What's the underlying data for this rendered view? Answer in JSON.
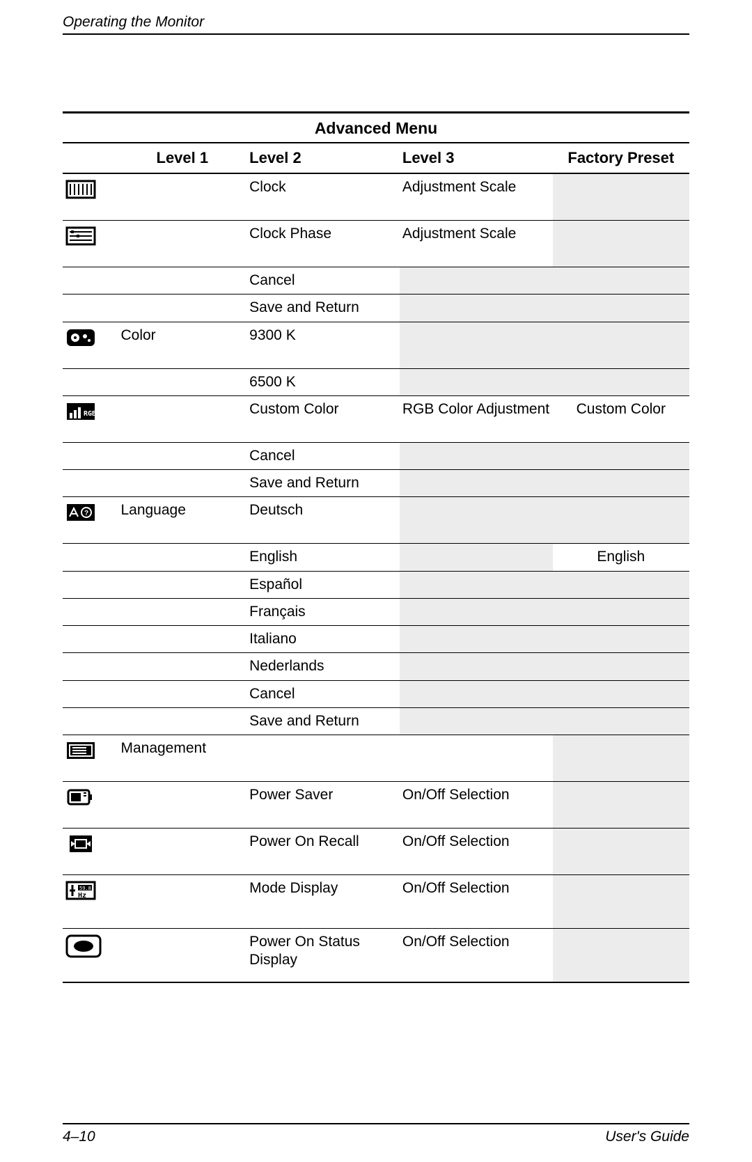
{
  "header": {
    "section": "Operating the Monitor"
  },
  "footer": {
    "page": "4–10",
    "doc": "User's Guide"
  },
  "table": {
    "title": "Advanced Menu",
    "columns": {
      "icon": "",
      "level1": "Level 1",
      "level2": "Level 2",
      "level3": "Level 3",
      "preset": "Factory Preset"
    },
    "shade_hex": "#ececec",
    "border_hex": "#000000",
    "font_size_pt": 16,
    "rows": [
      {
        "icon": "clock",
        "l1": "",
        "l2": "Clock",
        "l3": "Adjustment Scale",
        "fp": "",
        "shade_l3": false,
        "shade_fp": true,
        "tall": true
      },
      {
        "icon": "clockphase",
        "l1": "",
        "l2": "Clock Phase",
        "l3": "Adjustment Scale",
        "fp": "",
        "shade_l3": false,
        "shade_fp": true,
        "tall": true
      },
      {
        "icon": "",
        "l1": "",
        "l2": "Cancel",
        "l3": "",
        "fp": "",
        "shade_l3": true,
        "shade_fp": true
      },
      {
        "icon": "",
        "l1": "",
        "l2": "Save and Return",
        "l3": "",
        "fp": "",
        "shade_l3": true,
        "shade_fp": true
      },
      {
        "icon": "color",
        "l1": "Color",
        "l2": "9300 K",
        "l3": "",
        "fp": "",
        "shade_l3": true,
        "shade_fp": true,
        "tall": true
      },
      {
        "icon": "",
        "l1": "",
        "l2": "6500 K",
        "l3": "",
        "fp": "",
        "shade_l3": true,
        "shade_fp": true
      },
      {
        "icon": "rgb",
        "l1": "",
        "l2": "Custom Color",
        "l3": "RGB Color Adjustment",
        "fp": "Custom Color",
        "shade_l3": false,
        "shade_fp": false,
        "tall": true
      },
      {
        "icon": "",
        "l1": "",
        "l2": "Cancel",
        "l3": "",
        "fp": "",
        "shade_l3": true,
        "shade_fp": true
      },
      {
        "icon": "",
        "l1": "",
        "l2": "Save and Return",
        "l3": "",
        "fp": "",
        "shade_l3": true,
        "shade_fp": true
      },
      {
        "icon": "language",
        "l1": "Language",
        "l2": "Deutsch",
        "l3": "",
        "fp": "",
        "shade_l3": true,
        "shade_fp": true,
        "tall": true
      },
      {
        "icon": "",
        "l1": "",
        "l2": "English",
        "l3": "",
        "fp": "English",
        "shade_l3": true,
        "shade_fp": false
      },
      {
        "icon": "",
        "l1": "",
        "l2": "Español",
        "l3": "",
        "fp": "",
        "shade_l3": true,
        "shade_fp": true
      },
      {
        "icon": "",
        "l1": "",
        "l2": "Français",
        "l3": "",
        "fp": "",
        "shade_l3": true,
        "shade_fp": true
      },
      {
        "icon": "",
        "l1": "",
        "l2": "Italiano",
        "l3": "",
        "fp": "",
        "shade_l3": true,
        "shade_fp": true
      },
      {
        "icon": "",
        "l1": "",
        "l2": "Nederlands",
        "l3": "",
        "fp": "",
        "shade_l3": true,
        "shade_fp": true
      },
      {
        "icon": "",
        "l1": "",
        "l2": "Cancel",
        "l3": "",
        "fp": "",
        "shade_l3": true,
        "shade_fp": true
      },
      {
        "icon": "",
        "l1": "",
        "l2": "Save and Return",
        "l3": "",
        "fp": "",
        "shade_l3": true,
        "shade_fp": true
      },
      {
        "icon": "management",
        "l1": "Management",
        "l2": "",
        "l3": "",
        "fp": "",
        "shade_l3": false,
        "shade_fp": true,
        "tall": true
      },
      {
        "icon": "powersaver",
        "l1": "",
        "l2": "Power Saver",
        "l3": "On/Off Selection",
        "fp": "",
        "shade_l3": false,
        "shade_fp": true,
        "tall": true
      },
      {
        "icon": "poweronrecall",
        "l1": "",
        "l2": "Power On Recall",
        "l3": "On/Off Selection",
        "fp": "",
        "shade_l3": false,
        "shade_fp": true,
        "tall": true
      },
      {
        "icon": "modedisplay",
        "l1": "",
        "l2": "Mode Display",
        "l3": "On/Off Selection",
        "fp": "",
        "shade_l3": false,
        "shade_fp": true,
        "xtall": true
      },
      {
        "icon": "poweronstatus",
        "l1": "",
        "l2": "Power On Status Display",
        "l3": "On/Off Selection",
        "fp": "",
        "shade_l3": false,
        "shade_fp": true,
        "xtall": true,
        "big_icon": true
      }
    ]
  }
}
